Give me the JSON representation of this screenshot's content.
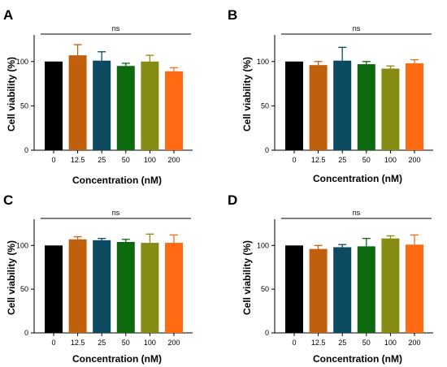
{
  "chart_data": [
    {
      "type": "bar",
      "panel": "A",
      "categories": [
        "0",
        "12.5",
        "25",
        "50",
        "100",
        "200"
      ],
      "values": [
        100,
        107,
        101,
        95,
        100,
        89
      ],
      "errors": [
        0,
        12,
        10,
        3,
        7,
        4
      ],
      "ylabel": "Cell viability (%)",
      "xlabel": "Concentration  (nM)",
      "ylim": [
        0,
        130
      ],
      "yticks": [
        "0",
        "50",
        "100"
      ],
      "annotation": "ns"
    },
    {
      "type": "bar",
      "panel": "B",
      "categories": [
        "0",
        "12.5",
        "25",
        "50",
        "100",
        "200"
      ],
      "values": [
        100,
        96,
        101,
        97,
        92,
        98
      ],
      "errors": [
        0,
        4,
        15,
        3,
        3,
        4
      ],
      "ylabel": "Cell viability (%)",
      "xlabel": "Concentration  (nM)",
      "ylim": [
        0,
        130
      ],
      "yticks": [
        "0",
        "50",
        "100"
      ],
      "annotation": "ns"
    },
    {
      "type": "bar",
      "panel": "C",
      "categories": [
        "0",
        "12.5",
        "25",
        "50",
        "100",
        "200"
      ],
      "values": [
        100,
        107,
        106,
        104,
        103,
        103
      ],
      "errors": [
        0,
        3,
        2,
        3,
        10,
        9
      ],
      "ylabel": "Cell viability (%)",
      "xlabel": "Concentration  (nM)",
      "ylim": [
        0,
        130
      ],
      "yticks": [
        "0",
        "50",
        "100"
      ],
      "annotation": "ns"
    },
    {
      "type": "bar",
      "panel": "D",
      "categories": [
        "0",
        "12.5",
        "25",
        "50",
        "100",
        "200"
      ],
      "values": [
        100,
        96,
        98,
        99,
        108,
        101
      ],
      "errors": [
        0,
        4,
        3,
        9,
        3,
        11
      ],
      "ylabel": "Cell viability (%)",
      "xlabel": "Concentration  (nM)",
      "ylim": [
        0,
        130
      ],
      "yticks": [
        "0",
        "50",
        "100"
      ],
      "annotation": "ns"
    }
  ],
  "colors": [
    "#000000",
    "#c0600d",
    "#0b4a60",
    "#0d6a0f",
    "#868b14",
    "#ff6a13"
  ]
}
